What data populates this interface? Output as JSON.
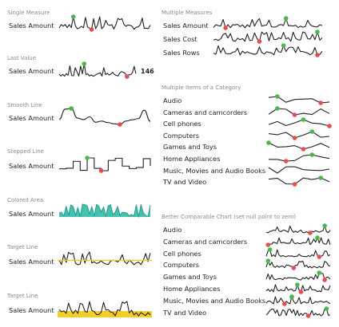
{
  "colors": {
    "line": "#222222",
    "max_point": "#4cb64c",
    "min_point": "#e84d4d",
    "area_fill": "#44c2b0",
    "area_line": "#2a9f8f",
    "target_line": "#f2c811",
    "target_band": "#f2c811"
  },
  "left": {
    "single_measure": {
      "header": "Single Measure",
      "label": "Sales Amount"
    },
    "last_value": {
      "header": "Last Value",
      "label": "Sales Amount",
      "value": "146"
    },
    "smooth_line": {
      "header": "Smooth Line",
      "label": "Sales Amount"
    },
    "stepped_line": {
      "header": "Stepped Line",
      "label": "Sales Amount"
    },
    "colored_area": {
      "header": "Colored Area",
      "label": "Sales Amount"
    },
    "target_line": {
      "header": "Target Line",
      "label": "Sales Amount"
    },
    "target_band": {
      "header": "Target Line",
      "label": "Sales Amount"
    }
  },
  "right": {
    "multiple_measures": {
      "header": "Multiple Measures",
      "rows": [
        "Sales Amount",
        "Sales Cost",
        "Sales Rows"
      ]
    },
    "multiple_items": {
      "header": "Multiple Items of a Category",
      "rows": [
        "Audio",
        "Cameras and camcorders",
        "Cell phones",
        "Computers",
        "Games and Toys",
        "Home Appliances",
        "Music, Movies and Audio Books",
        "TV and Video"
      ]
    },
    "comparable": {
      "header": "Better Comparable Chart (set null point to zero)",
      "rows": [
        "Audio",
        "Cameras and camcorders",
        "Cell phones",
        "Computers",
        "Games and Toys",
        "Home Appliances",
        "Music, Movies and Audio Books",
        "TV and Video"
      ]
    }
  }
}
